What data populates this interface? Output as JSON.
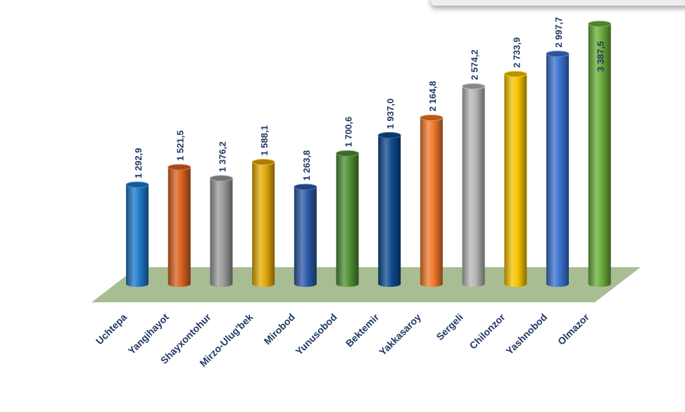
{
  "chart_data": {
    "type": "bar",
    "categories": [
      "Uchtepa",
      "Yangihayot",
      "Shayxontohur",
      "Mirzo-Ulug'bek",
      "Mirobod",
      "Yunusobod",
      "Bektemir",
      "Yakkasaroy",
      "Sergeli",
      "Chilonzor",
      "Yashnobod",
      "Olmazor"
    ],
    "values": [
      1292.9,
      1521.5,
      1376.2,
      1588.1,
      1263.8,
      1700.6,
      1937.0,
      2164.8,
      2574.2,
      2733.9,
      2997.7,
      3387.5
    ],
    "value_labels": [
      "1 292,9",
      "1 521,5",
      "1 376,2",
      "1 588,1",
      "1 263,8",
      "1 700,6",
      "1 937,0",
      "2 164,8",
      "2 574,2",
      "2 733,9",
      "2 997,7",
      "3 387,5"
    ],
    "colors": [
      "#1f78c8",
      "#d9621f",
      "#9a9a9a",
      "#e3a90a",
      "#2c5aa8",
      "#4f8f35",
      "#0d4a8f",
      "#f0792c",
      "#b5b5b5",
      "#f5c400",
      "#3a72cf",
      "#6aad3b"
    ],
    "floor_color": "#a9bd92",
    "label_color": "#1f3864",
    "ylim": [
      0,
      3387.5
    ],
    "title": "",
    "xlabel": "",
    "ylabel": "",
    "grid": false,
    "legend": "none"
  }
}
